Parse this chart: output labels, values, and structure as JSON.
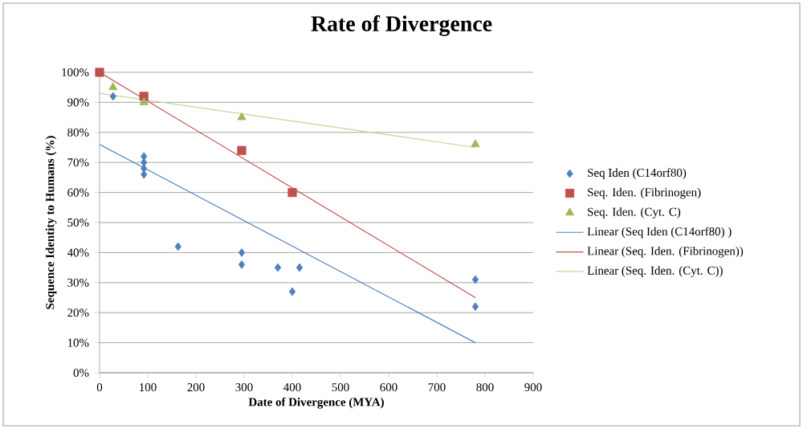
{
  "chart_data": {
    "type": "scatter",
    "title": "Rate of Divergence",
    "xlabel": "Date of Divergence (MYA)",
    "ylabel": "Sequence Identity to Humans (%)",
    "xlim": [
      0,
      900
    ],
    "xticks": [
      0,
      100,
      200,
      300,
      400,
      500,
      600,
      700,
      800,
      900
    ],
    "ylim": [
      0,
      100
    ],
    "yticks": [
      {
        "value": 0,
        "label": "0%"
      },
      {
        "value": 10,
        "label": "10%"
      },
      {
        "value": 20,
        "label": "20%"
      },
      {
        "value": 30,
        "label": "30%"
      },
      {
        "value": 40,
        "label": "40%"
      },
      {
        "value": 50,
        "label": "50%"
      },
      {
        "value": 60,
        "label": "60%"
      },
      {
        "value": 70,
        "label": "70%"
      },
      {
        "value": 80,
        "label": "80%"
      },
      {
        "value": 90,
        "label": "90%"
      },
      {
        "value": 100,
        "label": "100%"
      }
    ],
    "grid": "y",
    "legend": "right",
    "series": [
      {
        "name": "Seq Iden (C14orf80)",
        "color": "#4f81bd",
        "marker": "diamond",
        "x": [
          28,
          92,
          92,
          92,
          92,
          163,
          295,
          295,
          370,
          400,
          415,
          780,
          780
        ],
        "values": [
          92,
          72,
          70,
          68,
          66,
          42,
          40,
          36,
          35,
          27,
          35,
          31,
          22
        ]
      },
      {
        "name": "Seq. Iden. (Fibrinogen)",
        "color": "#c0504d",
        "marker": "square",
        "x": [
          0,
          92,
          295,
          400
        ],
        "values": [
          100,
          92,
          74,
          60
        ]
      },
      {
        "name": "Seq. Iden. (Cyt. C)",
        "color": "#9bbb59",
        "marker": "triangle",
        "x": [
          28,
          92,
          295,
          780
        ],
        "values": [
          95,
          90,
          85,
          76
        ]
      },
      {
        "name": "Linear (Seq Iden (C14orf80) )",
        "type": "line",
        "color": "#4f81bd",
        "marker": "none",
        "line_style": "solid",
        "x": [
          0,
          780
        ],
        "values": [
          76,
          10
        ]
      },
      {
        "name": "Linear (Seq. Iden. (Fibrinogen))",
        "type": "line",
        "color": "#c0504d",
        "marker": "none",
        "line_style": "solid",
        "x": [
          0,
          780
        ],
        "values": [
          100,
          25
        ]
      },
      {
        "name": "Linear (Seq. Iden. (Cyt. C))",
        "type": "line",
        "color": "#c3d69b",
        "marker": "none",
        "line_style": "solid",
        "x": [
          0,
          780
        ],
        "values": [
          93,
          75
        ]
      }
    ]
  }
}
